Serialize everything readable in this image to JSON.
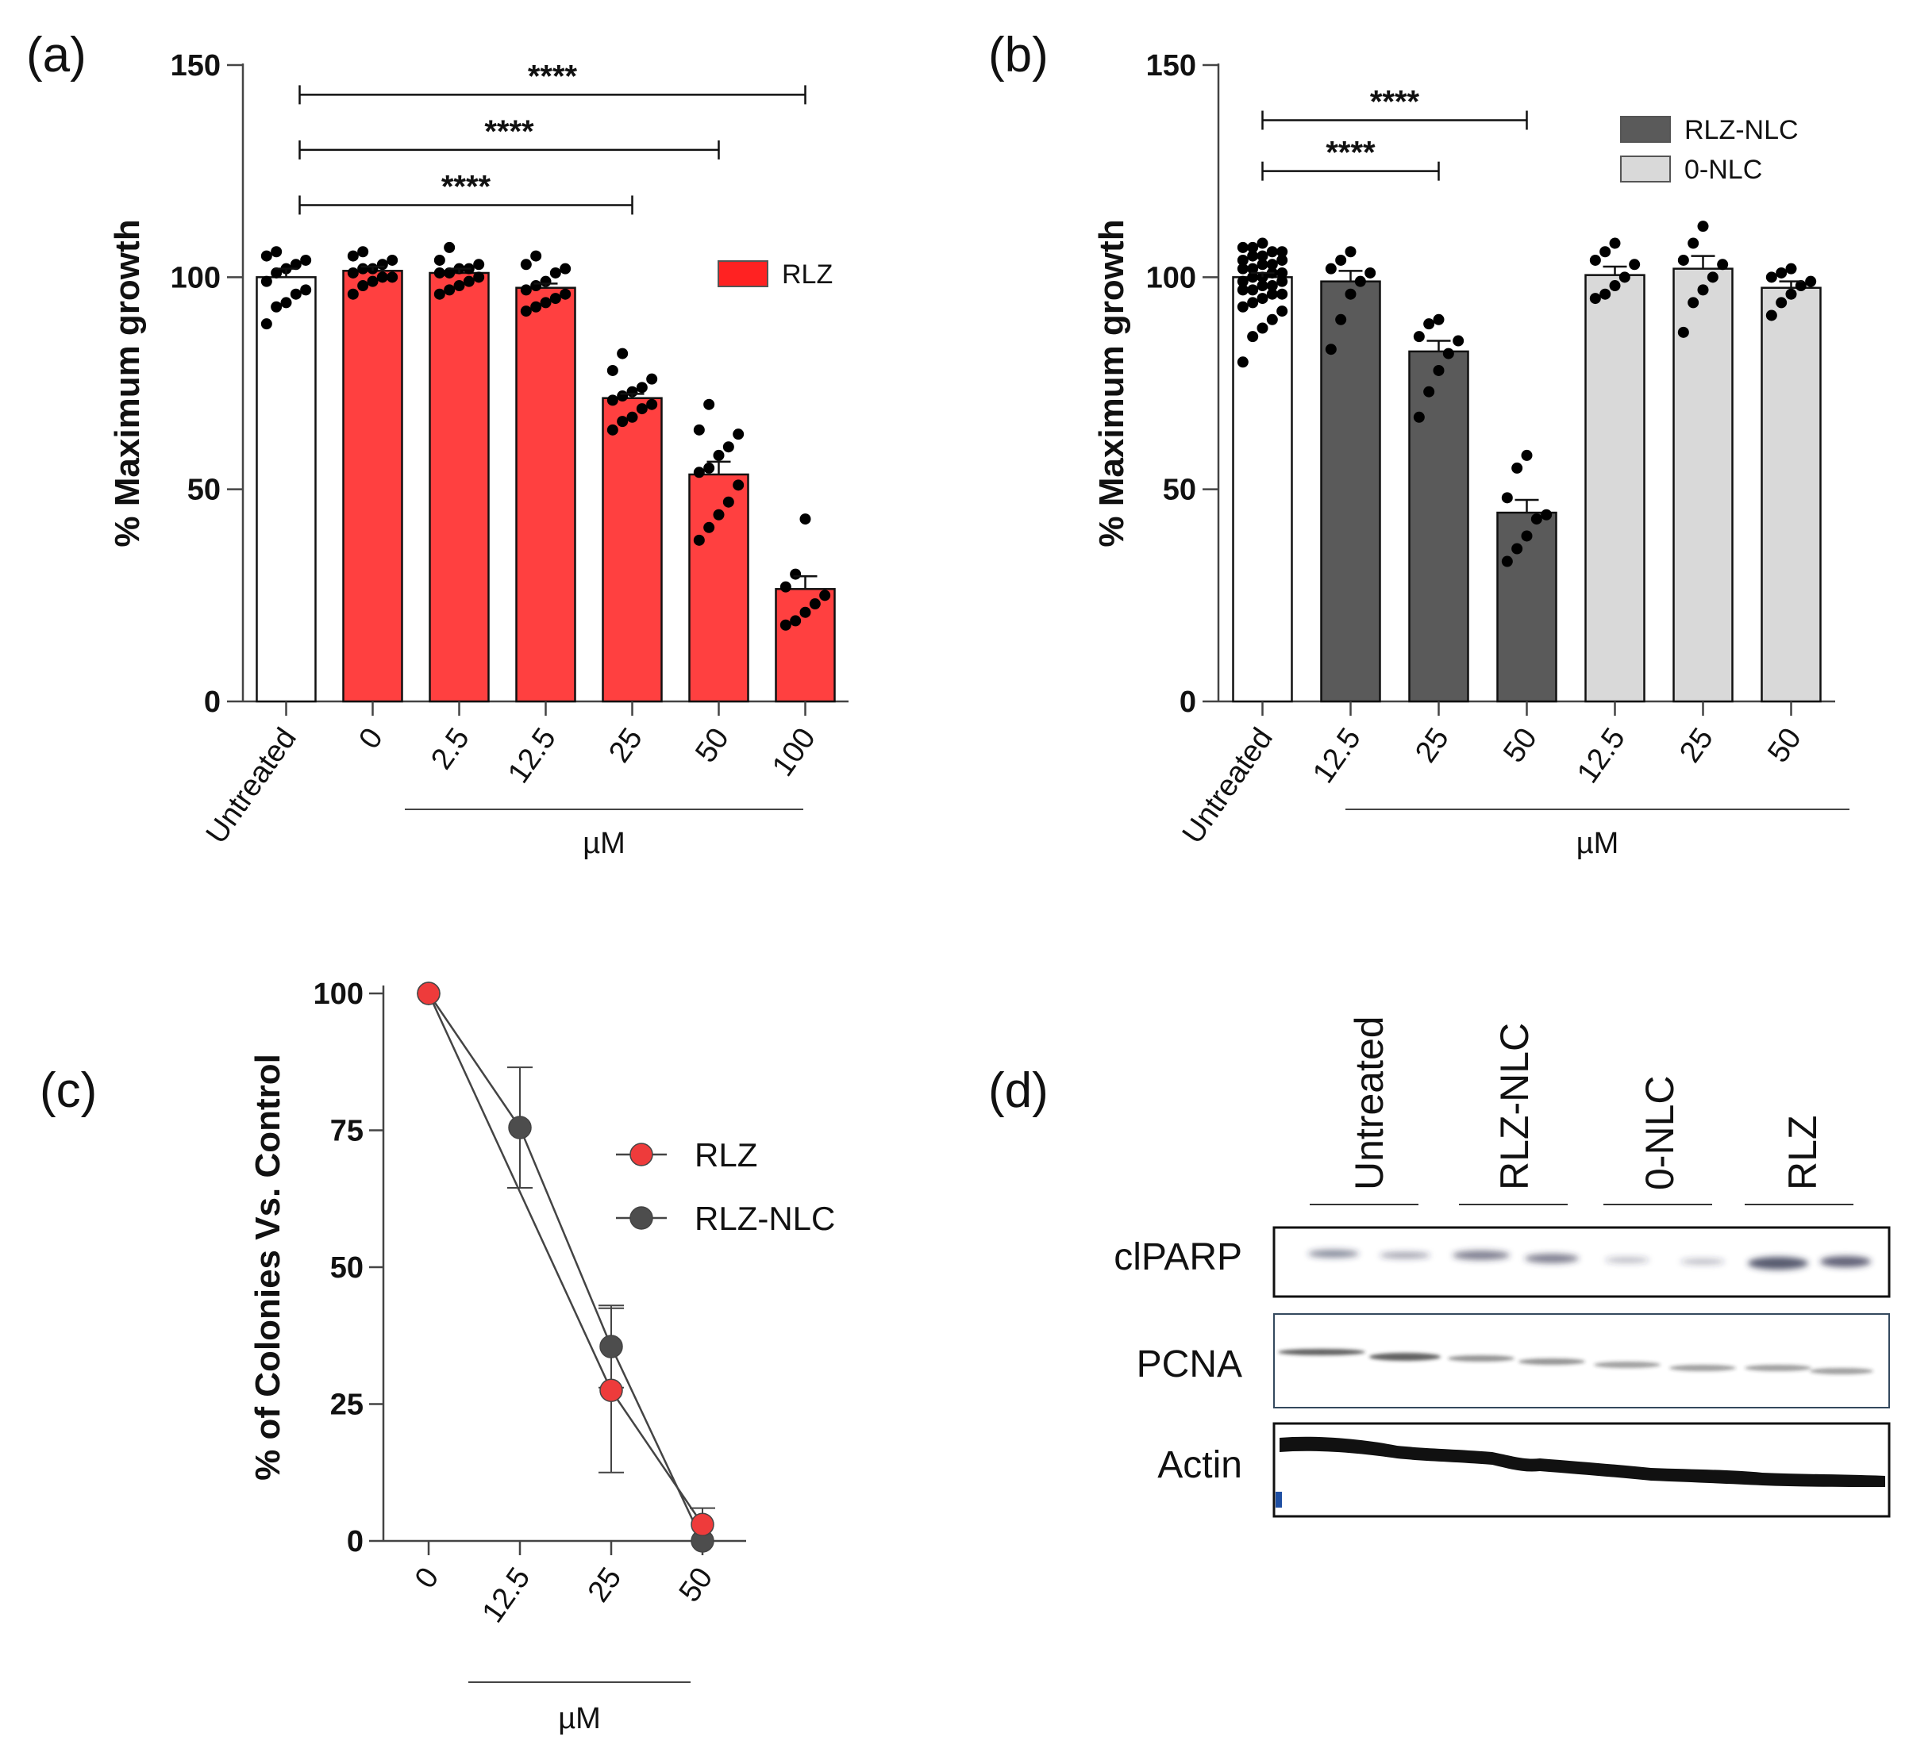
{
  "panels": {
    "a": {
      "label": "(a)"
    },
    "b": {
      "label": "(b)"
    },
    "c": {
      "label": "(c)"
    },
    "d": {
      "label": "(d)"
    }
  },
  "colors": {
    "red": "#ff4040",
    "dark": "#5a5a5a",
    "light": "#d9d9d9",
    "white": "#ffffff"
  },
  "chart_data": [
    {
      "id": "a",
      "type": "bar",
      "ylabel": "% Maximum growth",
      "ylim": [
        0,
        150
      ],
      "yticks": [
        0,
        50,
        100,
        150
      ],
      "categories": [
        "Untreated",
        "0",
        "2.5",
        "12.5",
        "25",
        "50",
        "100"
      ],
      "group_label": "µM",
      "legend": [
        {
          "name": "RLZ",
          "color": "#ff2222"
        }
      ],
      "bars": [
        {
          "value": 100,
          "sem": 2,
          "fill": "white",
          "points": [
            89,
            93,
            94,
            96,
            97,
            99,
            101,
            102,
            103,
            104,
            105,
            106
          ]
        },
        {
          "value": 101.5,
          "sem": 1,
          "fill": "red",
          "points": [
            96,
            98,
            99,
            100,
            100,
            101,
            102,
            102,
            103,
            104,
            105,
            106
          ]
        },
        {
          "value": 101,
          "sem": 1,
          "fill": "red",
          "points": [
            96,
            97,
            98,
            99,
            100,
            101,
            101,
            102,
            102,
            103,
            104,
            107
          ]
        },
        {
          "value": 97.5,
          "sem": 1,
          "fill": "red",
          "points": [
            92,
            93,
            94,
            95,
            96,
            97,
            98,
            99,
            101,
            102,
            103,
            105
          ]
        },
        {
          "value": 71.5,
          "sem": 1,
          "fill": "red",
          "points": [
            64,
            66,
            67,
            69,
            70,
            71,
            72,
            73,
            74,
            76,
            78,
            82
          ]
        },
        {
          "value": 53.5,
          "sem": 3,
          "fill": "red",
          "points": [
            38,
            41,
            44,
            47,
            51,
            54,
            55,
            58,
            60,
            63,
            64,
            70
          ]
        },
        {
          "value": 26.5,
          "sem": 3,
          "fill": "red",
          "points": [
            18,
            19,
            21,
            23,
            25,
            27,
            30,
            43
          ]
        }
      ],
      "significance": [
        {
          "from": 0,
          "to": 4,
          "y": 117,
          "text": "****"
        },
        {
          "from": 0,
          "to": 5,
          "y": 130,
          "text": "****"
        },
        {
          "from": 0,
          "to": 6,
          "y": 143,
          "text": "****"
        }
      ]
    },
    {
      "id": "b",
      "type": "bar",
      "ylabel": "% Maximum growth",
      "ylim": [
        0,
        150
      ],
      "yticks": [
        0,
        50,
        100,
        150
      ],
      "categories": [
        "Untreated",
        "12.5",
        "25",
        "50",
        "12.5",
        "25",
        "50"
      ],
      "group_label": "µM",
      "legend": [
        {
          "name": "RLZ-NLC",
          "color": "#5a5a5a"
        },
        {
          "name": "0-NLC",
          "color": "#d9d9d9"
        }
      ],
      "bars": [
        {
          "value": 100,
          "sem": 1,
          "fill": "white",
          "points": [
            80,
            86,
            88,
            90,
            92,
            93,
            94,
            95,
            96,
            96,
            97,
            97,
            98,
            98,
            99,
            99,
            100,
            100,
            101,
            101,
            102,
            102,
            103,
            103,
            104,
            104,
            105,
            105,
            106,
            106,
            107,
            107,
            108
          ]
        },
        {
          "value": 99,
          "sem": 2.5,
          "fill": "dark",
          "points": [
            83,
            90,
            96,
            99,
            101,
            102,
            104,
            106
          ]
        },
        {
          "value": 82.5,
          "sem": 2.5,
          "fill": "dark",
          "points": [
            67,
            73,
            78,
            82,
            85,
            86,
            89,
            90
          ]
        },
        {
          "value": 44.5,
          "sem": 3,
          "fill": "dark",
          "points": [
            33,
            36,
            39,
            43,
            44,
            48,
            55,
            58
          ]
        },
        {
          "value": 100.5,
          "sem": 2,
          "fill": "light",
          "points": [
            95,
            96,
            98,
            100,
            103,
            104,
            106,
            108
          ]
        },
        {
          "value": 102,
          "sem": 3,
          "fill": "light",
          "points": [
            87,
            94,
            97,
            100,
            103,
            104,
            108,
            112
          ]
        },
        {
          "value": 97.5,
          "sem": 1.5,
          "fill": "light",
          "points": [
            91,
            94,
            96,
            98,
            99,
            100,
            101,
            102
          ]
        }
      ],
      "significance": [
        {
          "from": 0,
          "to": 2,
          "y": 125,
          "text": "****"
        },
        {
          "from": 0,
          "to": 3,
          "y": 137,
          "text": "****"
        }
      ]
    },
    {
      "id": "c",
      "type": "line",
      "ylabel": "% of Colonies Vs. Control",
      "ylim": [
        0,
        100
      ],
      "yticks": [
        0,
        25,
        50,
        75,
        100
      ],
      "categories": [
        "0",
        "12.5",
        "25",
        "50"
      ],
      "group_label": "µM",
      "series": [
        {
          "name": "RLZ",
          "color": "#ee3b3b",
          "values": [
            100,
            null,
            27.5,
            3
          ],
          "err": [
            0,
            0,
            15,
            3
          ]
        },
        {
          "name": "RLZ-NLC",
          "color": "#4d4d4d",
          "values": [
            100,
            75.5,
            35.5,
            0
          ],
          "err": [
            0,
            11,
            7.5,
            0
          ]
        }
      ]
    }
  ],
  "blot": {
    "lanes": [
      "Untreated",
      "RLZ-NLC",
      "0-NLC",
      "RLZ"
    ],
    "rows": [
      "clPARP",
      "PCNA",
      "Actin"
    ]
  }
}
